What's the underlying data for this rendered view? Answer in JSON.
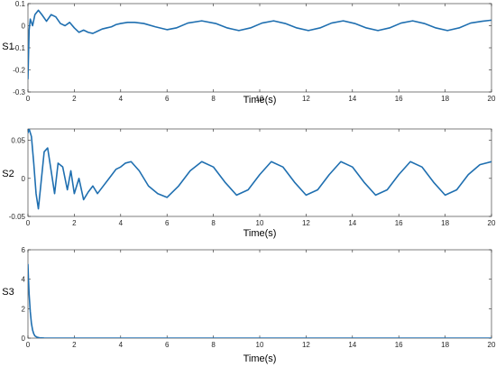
{
  "chart_data": [
    {
      "type": "line",
      "ylabel": "S1",
      "xlabel": "Time(s)",
      "xlim": [
        0,
        20
      ],
      "ylim": [
        -0.3,
        0.1
      ],
      "xticks": [
        "0",
        "2",
        "4",
        "6",
        "8",
        "10",
        "12",
        "14",
        "16",
        "18",
        "20"
      ],
      "yticks": [
        "-0.3",
        "-0.2",
        "-0.1",
        "0",
        "0.1"
      ],
      "ytick_values": [
        -0.3,
        -0.2,
        -0.1,
        0,
        0.1
      ],
      "grid": false,
      "series": [
        {
          "color": "#1f6fb0",
          "x": [
            0,
            0.05,
            0.1,
            0.2,
            0.3,
            0.45,
            0.6,
            0.8,
            1.0,
            1.2,
            1.4,
            1.6,
            1.8,
            2.0,
            2.2,
            2.4,
            2.6,
            2.8,
            3.0,
            3.2,
            3.4,
            3.6,
            3.8,
            4.0,
            4.3,
            4.6,
            5.0,
            5.5,
            6.0,
            6.4,
            6.9,
            7.5,
            8.1,
            8.6,
            9.1,
            9.6,
            10.1,
            10.6,
            11.1,
            11.6,
            12.1,
            12.6,
            13.1,
            13.6,
            14.1,
            14.6,
            15.1,
            15.6,
            16.1,
            16.6,
            17.1,
            17.6,
            18.1,
            18.6,
            19.1,
            19.6,
            20.0
          ],
          "values": [
            -0.24,
            -0.02,
            0.03,
            0.0,
            0.05,
            0.07,
            0.05,
            0.02,
            0.05,
            0.04,
            0.01,
            0.0,
            0.015,
            -0.01,
            -0.03,
            -0.02,
            -0.03,
            -0.035,
            -0.025,
            -0.015,
            -0.01,
            -0.005,
            0.005,
            0.01,
            0.015,
            0.015,
            0.01,
            -0.005,
            -0.018,
            -0.01,
            0.012,
            0.022,
            0.01,
            -0.01,
            -0.022,
            -0.01,
            0.012,
            0.022,
            0.01,
            -0.01,
            -0.022,
            -0.01,
            0.012,
            0.022,
            0.01,
            -0.01,
            -0.022,
            -0.01,
            0.012,
            0.022,
            0.01,
            -0.01,
            -0.022,
            -0.01,
            0.012,
            0.02,
            0.025
          ]
        }
      ]
    },
    {
      "type": "line",
      "ylabel": "S2",
      "xlabel": "Time(s)",
      "xlim": [
        0,
        20
      ],
      "ylim": [
        -0.05,
        0.065
      ],
      "xticks": [
        "0",
        "2",
        "4",
        "6",
        "8",
        "10",
        "12",
        "14",
        "16",
        "18",
        "20"
      ],
      "yticks": [
        "-0.05",
        "0",
        "0.05"
      ],
      "ytick_values": [
        -0.05,
        0,
        0.05
      ],
      "grid": false,
      "series": [
        {
          "color": "#1f6fb0",
          "x": [
            0,
            0.05,
            0.15,
            0.25,
            0.35,
            0.45,
            0.55,
            0.7,
            0.85,
            1.0,
            1.15,
            1.3,
            1.5,
            1.7,
            1.85,
            2.0,
            2.2,
            2.4,
            2.6,
            2.8,
            3.0,
            3.2,
            3.5,
            3.8,
            4.0,
            4.2,
            4.45,
            4.8,
            5.2,
            5.6,
            6.0,
            6.5,
            7.0,
            7.5,
            8.0,
            8.5,
            9.0,
            9.5,
            10.0,
            10.5,
            11.0,
            11.5,
            12.0,
            12.5,
            13.0,
            13.5,
            14.0,
            14.5,
            15.0,
            15.5,
            16.0,
            16.5,
            17.0,
            17.5,
            18.0,
            18.5,
            19.0,
            19.5,
            20.0
          ],
          "values": [
            0.06,
            0.065,
            0.055,
            0.02,
            -0.02,
            -0.04,
            -0.01,
            0.035,
            0.04,
            0.01,
            -0.02,
            0.02,
            0.015,
            -0.015,
            0.01,
            -0.02,
            0.0,
            -0.028,
            -0.018,
            -0.01,
            -0.02,
            -0.012,
            0.0,
            0.012,
            0.015,
            0.02,
            0.022,
            0.01,
            -0.01,
            -0.02,
            -0.025,
            -0.01,
            0.01,
            0.022,
            0.015,
            -0.005,
            -0.022,
            -0.015,
            0.005,
            0.022,
            0.015,
            -0.005,
            -0.022,
            -0.015,
            0.005,
            0.022,
            0.015,
            -0.005,
            -0.022,
            -0.015,
            0.005,
            0.022,
            0.015,
            -0.005,
            -0.022,
            -0.015,
            0.005,
            0.018,
            0.022
          ]
        }
      ]
    },
    {
      "type": "line",
      "ylabel": "S3",
      "xlabel": "Time(s)",
      "xlim": [
        0,
        20
      ],
      "ylim": [
        0,
        6
      ],
      "xticks": [
        "0",
        "2",
        "4",
        "6",
        "8",
        "10",
        "12",
        "14",
        "16",
        "18",
        "20"
      ],
      "yticks": [
        "0",
        "2",
        "4",
        "6"
      ],
      "ytick_values": [
        0,
        2,
        4,
        6
      ],
      "grid": false,
      "series": [
        {
          "color": "#1f6fb0",
          "x": [
            0,
            0.02,
            0.05,
            0.1,
            0.15,
            0.2,
            0.25,
            0.3,
            0.4,
            0.5,
            0.7,
            1.0,
            2.0,
            5.0,
            10.0,
            15.0,
            20.0
          ],
          "values": [
            5.0,
            4.1,
            3.0,
            1.8,
            1.0,
            0.55,
            0.3,
            0.15,
            0.06,
            0.02,
            0.005,
            0.0,
            0.0,
            0.0,
            0.0,
            0.0,
            0.0
          ]
        }
      ]
    }
  ]
}
